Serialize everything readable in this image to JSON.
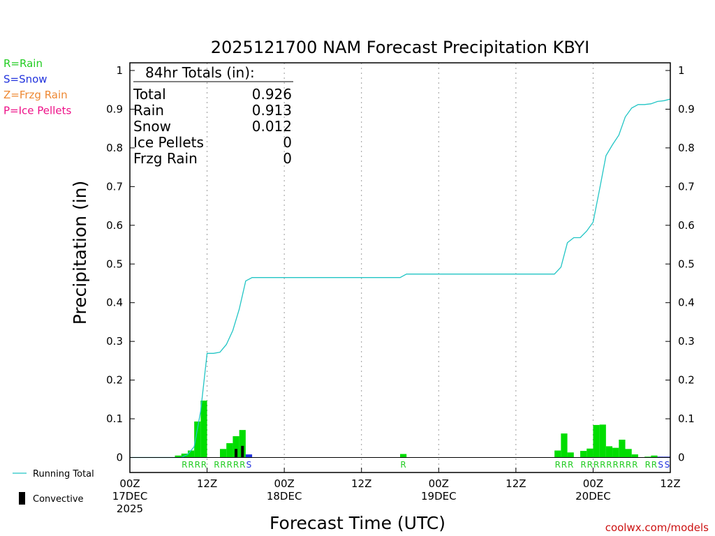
{
  "chart_data": {
    "type": "bar",
    "title": "2025121700 NAM Forecast Precipitation KBYI",
    "xlabel": "Forecast Time (UTC)",
    "ylabel": "Precipitation (in)",
    "ylim": [
      0,
      1
    ],
    "xlim_hours": [
      0,
      84
    ],
    "y_ticks": [
      "0",
      "0.1",
      "0.2",
      "0.3",
      "0.4",
      "0.5",
      "0.6",
      "0.7",
      "0.8",
      "0.9",
      "1"
    ],
    "x_ticks": [
      {
        "hour": 0,
        "lines": [
          "00Z",
          "17DEC",
          "2025"
        ]
      },
      {
        "hour": 12,
        "lines": [
          "12Z"
        ]
      },
      {
        "hour": 24,
        "lines": [
          "00Z",
          "18DEC"
        ]
      },
      {
        "hour": 36,
        "lines": [
          "12Z"
        ]
      },
      {
        "hour": 48,
        "lines": [
          "00Z",
          "19DEC"
        ]
      },
      {
        "hour": 60,
        "lines": [
          "12Z"
        ]
      },
      {
        "hour": 72,
        "lines": [
          "00Z",
          "20DEC"
        ]
      },
      {
        "hour": 84,
        "lines": [
          "12Z"
        ]
      }
    ],
    "grid_hours": [
      12,
      24,
      36,
      48,
      60,
      72
    ],
    "totals_box": {
      "heading": "84hr Totals (in):",
      "rows": [
        {
          "label": "Total",
          "value": "0.926"
        },
        {
          "label": "Rain",
          "value": "0.913"
        },
        {
          "label": "Snow",
          "value": "0.012"
        },
        {
          "label": "Ice Pellets",
          "value": "0"
        },
        {
          "label": "Frzg Rain",
          "value": "0"
        }
      ]
    },
    "type_legend": [
      {
        "text": "R=Rain",
        "color": "#22cc22"
      },
      {
        "text": "S=Snow",
        "color": "#2233dd"
      },
      {
        "text": "Z=Frzg Rain",
        "color": "#ee8833"
      },
      {
        "text": "P=Ice Pellets",
        "color": "#ee1188"
      }
    ],
    "line_legend": [
      {
        "text": "Running Total",
        "color": "#22c5c5",
        "kind": "line"
      },
      {
        "text": "Convective",
        "color": "#000000",
        "kind": "bar"
      }
    ],
    "credit": "coolwx.com/models",
    "series": [
      {
        "name": "Hourly Precipitation",
        "bars": [
          {
            "hour": 8,
            "value": 0.005,
            "type": "R"
          },
          {
            "hour": 9,
            "value": 0.01,
            "type": "R"
          },
          {
            "hour": 10,
            "value": 0.018,
            "type": "R"
          },
          {
            "hour": 11,
            "value": 0.093,
            "type": "R"
          },
          {
            "hour": 12,
            "value": 0.147,
            "type": "R"
          },
          {
            "hour": 15,
            "value": 0.022,
            "type": "R"
          },
          {
            "hour": 16,
            "value": 0.037,
            "type": "R"
          },
          {
            "hour": 17,
            "value": 0.055,
            "type": "R"
          },
          {
            "hour": 18,
            "value": 0.071,
            "type": "R"
          },
          {
            "hour": 19,
            "value": 0.008,
            "type": "S"
          },
          {
            "hour": 43,
            "value": 0.009,
            "type": "R"
          },
          {
            "hour": 67,
            "value": 0.018,
            "type": "R"
          },
          {
            "hour": 68,
            "value": 0.062,
            "type": "R"
          },
          {
            "hour": 69,
            "value": 0.013,
            "type": "R"
          },
          {
            "hour": 71,
            "value": 0.017,
            "type": "R"
          },
          {
            "hour": 72,
            "value": 0.023,
            "type": "R"
          },
          {
            "hour": 73,
            "value": 0.084,
            "type": "R"
          },
          {
            "hour": 74,
            "value": 0.085,
            "type": "R"
          },
          {
            "hour": 75,
            "value": 0.029,
            "type": "R"
          },
          {
            "hour": 76,
            "value": 0.025,
            "type": "R"
          },
          {
            "hour": 77,
            "value": 0.046,
            "type": "R"
          },
          {
            "hour": 78,
            "value": 0.022,
            "type": "R"
          },
          {
            "hour": 79,
            "value": 0.008,
            "type": "R"
          },
          {
            "hour": 81,
            "value": 0.002,
            "type": "R"
          },
          {
            "hour": 82,
            "value": 0.005,
            "type": "R"
          },
          {
            "hour": 83,
            "value": 0.002,
            "type": "S"
          },
          {
            "hour": 84,
            "value": 0.002,
            "type": "S"
          }
        ]
      },
      {
        "name": "Convective",
        "bars": [
          {
            "hour": 17,
            "value": 0.022
          },
          {
            "hour": 18,
            "value": 0.03
          }
        ]
      },
      {
        "name": "Running Total",
        "points": [
          [
            0,
            0
          ],
          [
            8,
            0
          ],
          [
            9,
            0.008
          ],
          [
            10,
            0.028
          ],
          [
            11,
            0.12
          ],
          [
            12,
            0.269
          ],
          [
            13,
            0.269
          ],
          [
            14,
            0.272
          ],
          [
            15,
            0.292
          ],
          [
            16,
            0.328
          ],
          [
            17,
            0.383
          ],
          [
            18,
            0.456
          ],
          [
            19,
            0.465
          ],
          [
            20,
            0.465
          ],
          [
            42,
            0.465
          ],
          [
            43,
            0.474
          ],
          [
            66,
            0.474
          ],
          [
            67,
            0.492
          ],
          [
            68,
            0.555
          ],
          [
            69,
            0.568
          ],
          [
            70,
            0.568
          ],
          [
            71,
            0.585
          ],
          [
            72,
            0.608
          ],
          [
            73,
            0.692
          ],
          [
            74,
            0.78
          ],
          [
            75,
            0.808
          ],
          [
            76,
            0.833
          ],
          [
            77,
            0.88
          ],
          [
            78,
            0.903
          ],
          [
            79,
            0.912
          ],
          [
            80,
            0.912
          ],
          [
            81,
            0.914
          ],
          [
            82,
            0.92
          ],
          [
            83,
            0.922
          ],
          [
            84,
            0.926
          ]
        ]
      }
    ],
    "type_markers": [
      {
        "hour": 9,
        "text": "R"
      },
      {
        "hour": 10,
        "text": "R"
      },
      {
        "hour": 11,
        "text": "R"
      },
      {
        "hour": 12,
        "text": "R"
      },
      {
        "hour": 14,
        "text": "R"
      },
      {
        "hour": 15,
        "text": "R"
      },
      {
        "hour": 16,
        "text": "R"
      },
      {
        "hour": 17,
        "text": "R"
      },
      {
        "hour": 18,
        "text": "R"
      },
      {
        "hour": 19,
        "text": "S"
      },
      {
        "hour": 43,
        "text": "R"
      },
      {
        "hour": 67,
        "text": "R"
      },
      {
        "hour": 68,
        "text": "R"
      },
      {
        "hour": 69,
        "text": "R"
      },
      {
        "hour": 71,
        "text": "R"
      },
      {
        "hour": 72,
        "text": "R"
      },
      {
        "hour": 73,
        "text": "R"
      },
      {
        "hour": 74,
        "text": "R"
      },
      {
        "hour": 75,
        "text": "R"
      },
      {
        "hour": 76,
        "text": "R"
      },
      {
        "hour": 77,
        "text": "R"
      },
      {
        "hour": 78,
        "text": "R"
      },
      {
        "hour": 79,
        "text": "R"
      },
      {
        "hour": 81,
        "text": "R"
      },
      {
        "hour": 82,
        "text": "R"
      },
      {
        "hour": 83,
        "text": "S"
      },
      {
        "hour": 84,
        "text": "S"
      }
    ],
    "marker_colors": {
      "R": "#22cc22",
      "S": "#2233dd",
      "Z": "#ee8833",
      "P": "#ee1188"
    }
  }
}
